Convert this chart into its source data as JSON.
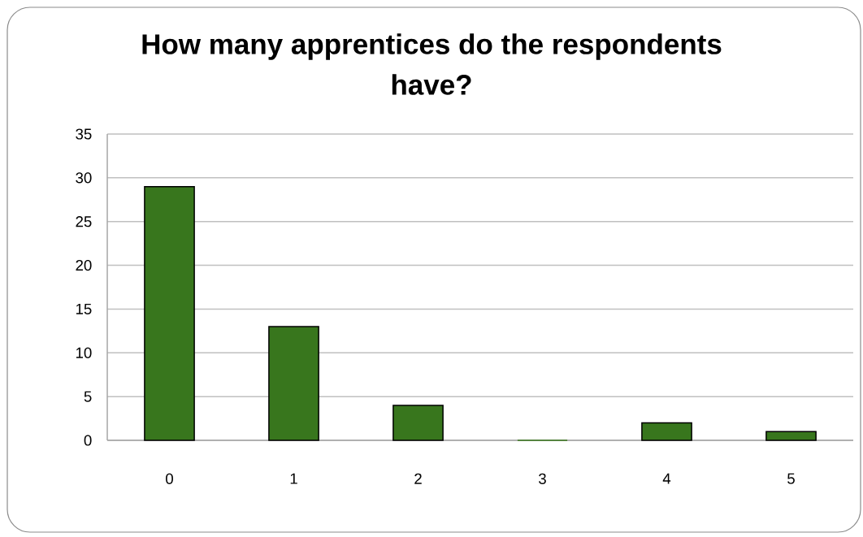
{
  "chart_data": {
    "type": "bar",
    "title": "How many apprentices do the respondents have?",
    "categories": [
      "0",
      "1",
      "2",
      "3",
      "4",
      "5"
    ],
    "values": [
      29,
      13,
      4,
      0,
      2,
      1
    ],
    "color": "#38761d",
    "ylim": [
      0,
      35
    ],
    "yticks": [
      0,
      5,
      10,
      15,
      20,
      25,
      30,
      35
    ],
    "grid": "y"
  }
}
